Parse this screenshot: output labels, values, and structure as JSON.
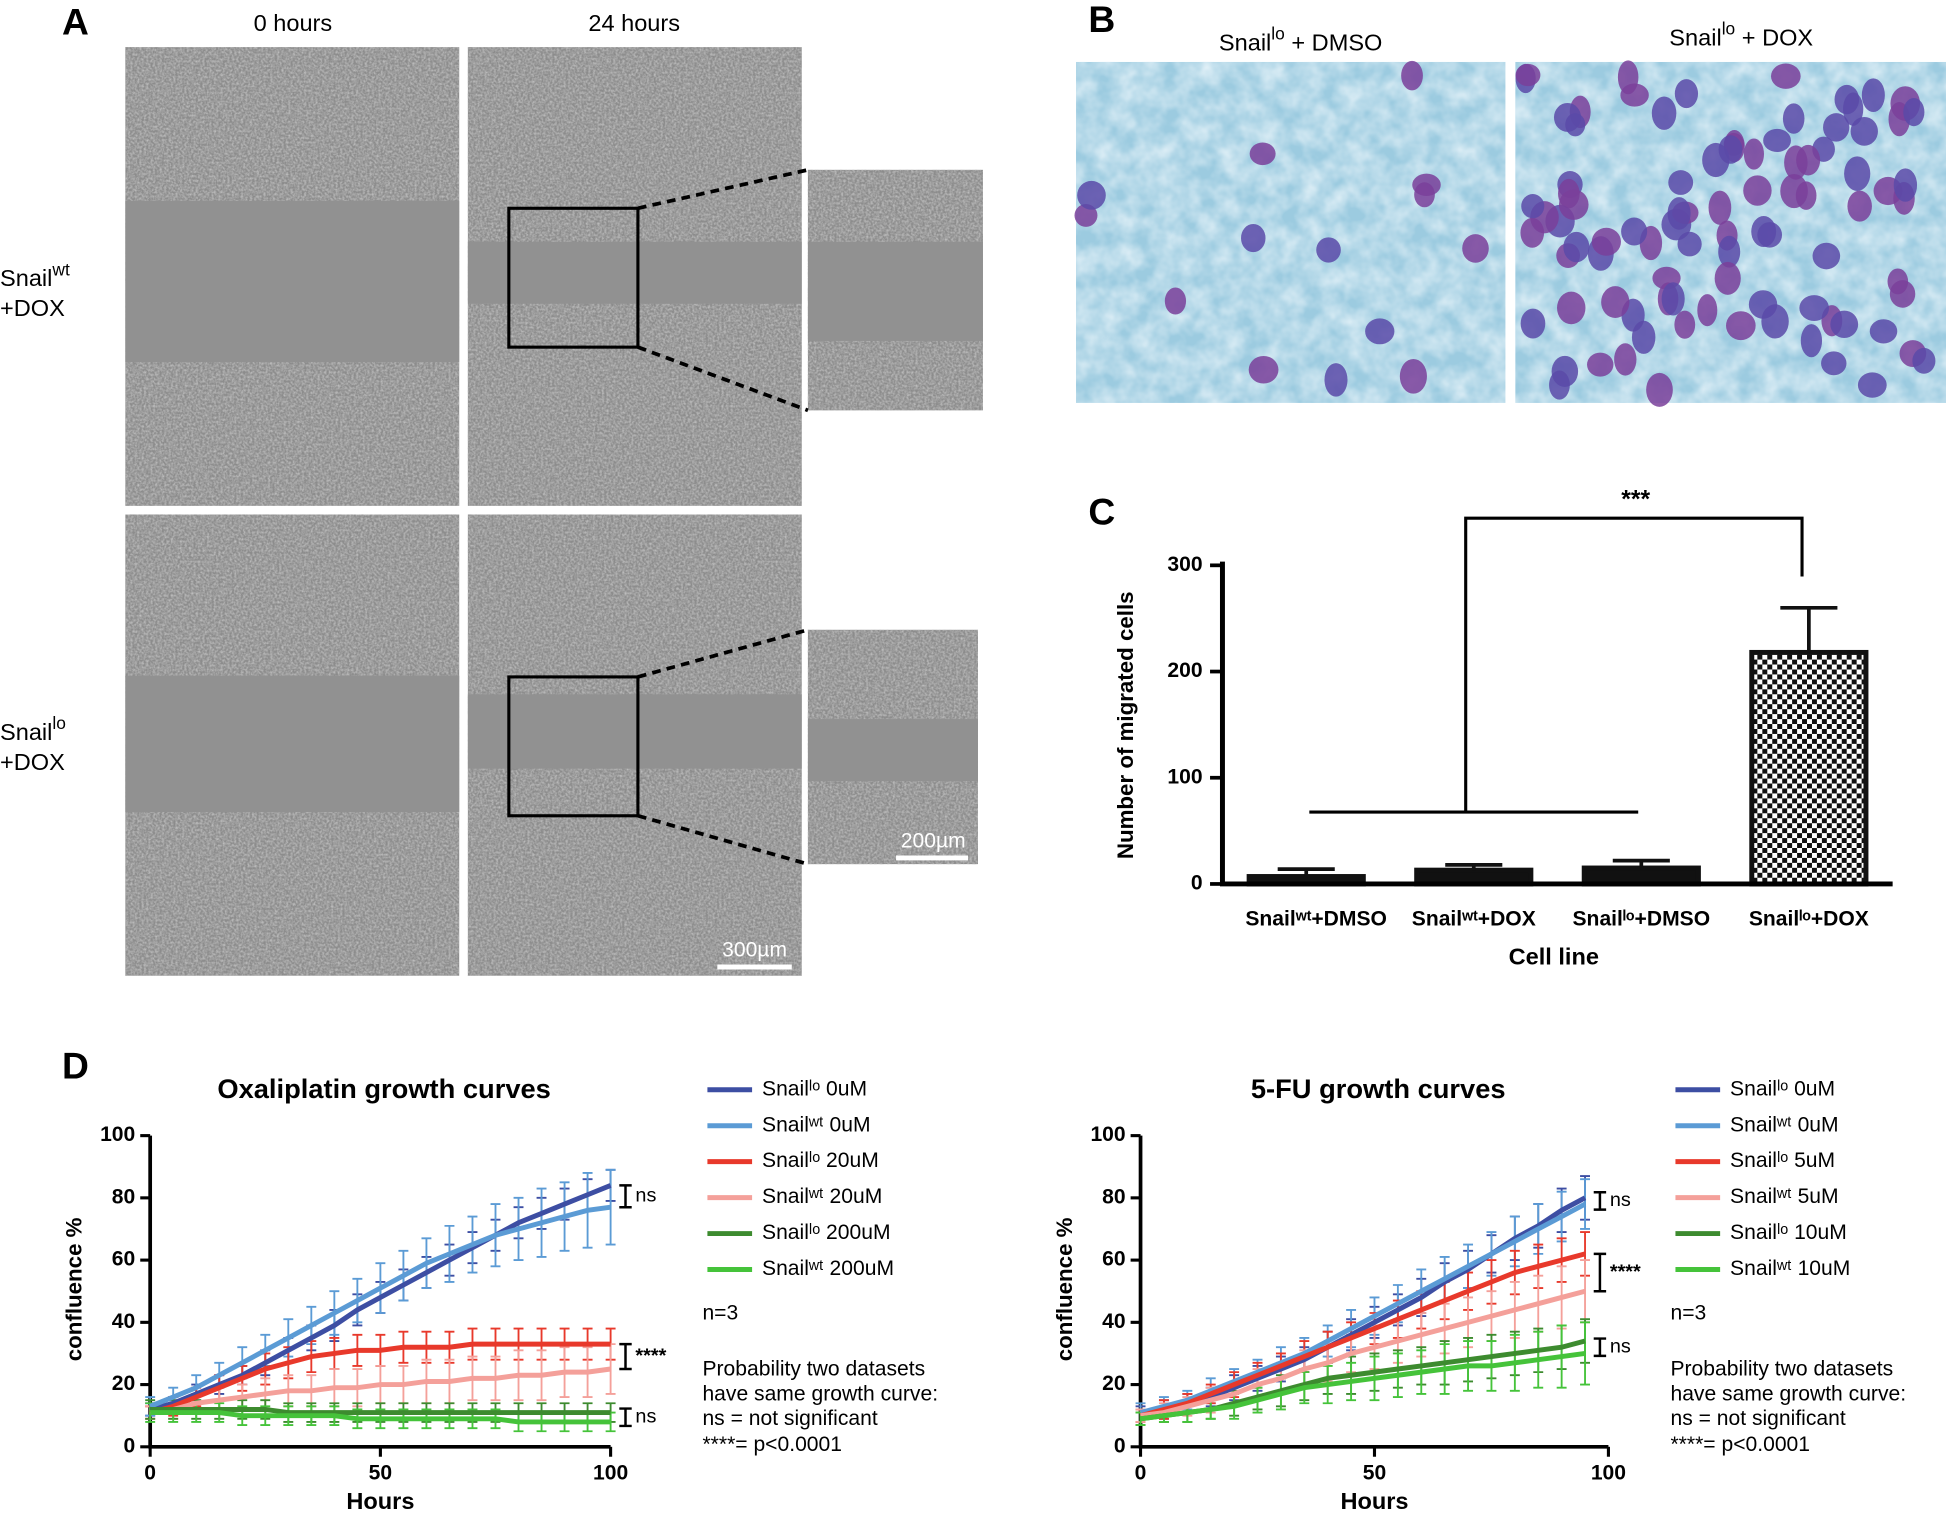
{
  "panel_labels": [
    "A",
    "B",
    "C",
    "D"
  ],
  "panel_a": {
    "column_titles": [
      "0 hours",
      "24 hours"
    ],
    "row_labels": [
      {
        "name": "Snail",
        "sup": "wt",
        "treatment": "+DOX"
      },
      {
        "name": "Snail",
        "sup": "lo",
        "treatment": "+DOX"
      }
    ],
    "scale_bars": [
      "300µm",
      "200µm"
    ]
  },
  "panel_b": {
    "titles": [
      {
        "name": "Snail",
        "sup": "lo",
        "rest": " + DMSO"
      },
      {
        "name": "Snail",
        "sup": "lo",
        "rest": " + DOX"
      }
    ]
  },
  "chart_data": [
    {
      "type": "bar",
      "categories": [
        "Snailʷᵗ+DMSO",
        "Snailʷᵗ+DOX",
        "Snailˡᵒ+DMSO",
        "Snailˡᵒ+DOX"
      ],
      "values": [
        7,
        13,
        15,
        218
      ],
      "errors": [
        7,
        5,
        7,
        42
      ],
      "colors": [
        "#111111",
        "#111111",
        "#111111",
        "#111111"
      ],
      "patterns": [
        "solid",
        "solid",
        "solid",
        "checkerboard"
      ],
      "ylabel": "Number of migrated cells",
      "xlabel": "Cell line",
      "ylim": [
        0,
        300
      ],
      "yticks": [
        0,
        100,
        200,
        300
      ],
      "annotations": [
        "***"
      ]
    },
    {
      "type": "line",
      "title": "Oxaliplatin growth curves",
      "xlabel": "Hours",
      "ylabel": "confluence %",
      "x": [
        0,
        5,
        10,
        15,
        20,
        25,
        30,
        35,
        40,
        45,
        50,
        55,
        60,
        65,
        70,
        75,
        80,
        85,
        90,
        95,
        100
      ],
      "xlim": [
        0,
        100
      ],
      "xticks": [
        0,
        50,
        100
      ],
      "ylim": [
        0,
        100
      ],
      "yticks": [
        0,
        20,
        40,
        60,
        80,
        100
      ],
      "series": [
        {
          "name": "Snailˡᵒ 0uM",
          "color": "#3d4ea3",
          "values": [
            12,
            14,
            17,
            20,
            23,
            27,
            31,
            35,
            39,
            44,
            48,
            52,
            56,
            60,
            64,
            68,
            72,
            75,
            78,
            81,
            84
          ],
          "errors": [
            2,
            2,
            3,
            3,
            3,
            4,
            4,
            4,
            5,
            5,
            5,
            5,
            5,
            5,
            5,
            5,
            5,
            5,
            5,
            5,
            5
          ]
        },
        {
          "name": "Snailʷᵗ 0uM",
          "color": "#5b9bd5",
          "values": [
            13,
            16,
            19,
            23,
            27,
            31,
            35,
            39,
            43,
            47,
            51,
            55,
            59,
            62,
            65,
            68,
            70,
            72,
            74,
            76,
            77
          ],
          "errors": [
            3,
            3,
            4,
            4,
            5,
            5,
            6,
            6,
            7,
            7,
            8,
            8,
            8,
            9,
            9,
            10,
            10,
            11,
            11,
            12,
            12
          ]
        },
        {
          "name": "Snailˡᵒ 20uM",
          "color": "#e8392b",
          "values": [
            11,
            13,
            16,
            19,
            22,
            25,
            27,
            29,
            30,
            31,
            31,
            32,
            32,
            32,
            33,
            33,
            33,
            33,
            33,
            33,
            33
          ],
          "errors": [
            2,
            3,
            3,
            4,
            4,
            5,
            5,
            5,
            5,
            5,
            5,
            5,
            5,
            5,
            5,
            5,
            5,
            5,
            5,
            5,
            5
          ]
        },
        {
          "name": "Snailʷᵗ 20uM",
          "color": "#f4a09a",
          "values": [
            11,
            12,
            14,
            15,
            16,
            17,
            18,
            18,
            19,
            19,
            20,
            20,
            21,
            21,
            22,
            22,
            23,
            23,
            24,
            24,
            25
          ],
          "errors": [
            2,
            3,
            3,
            4,
            4,
            5,
            5,
            5,
            6,
            6,
            6,
            6,
            7,
            7,
            7,
            7,
            8,
            8,
            8,
            8,
            8
          ]
        },
        {
          "name": "Snailˡᵒ 200uM",
          "color": "#3d8b2f",
          "values": [
            12,
            12,
            12,
            12,
            12,
            12,
            11,
            11,
            11,
            11,
            11,
            11,
            11,
            11,
            11,
            11,
            11,
            11,
            11,
            11,
            11
          ],
          "errors": [
            3,
            3,
            3,
            3,
            3,
            3,
            3,
            3,
            3,
            3,
            3,
            3,
            3,
            3,
            3,
            3,
            3,
            3,
            3,
            3,
            3
          ]
        },
        {
          "name": "Snailʷᵗ 200uM",
          "color": "#45c33a",
          "values": [
            11,
            11,
            11,
            11,
            10,
            10,
            10,
            10,
            10,
            9,
            9,
            9,
            9,
            9,
            9,
            9,
            8,
            8,
            8,
            8,
            8
          ],
          "errors": [
            3,
            3,
            3,
            3,
            3,
            3,
            3,
            3,
            3,
            3,
            3,
            3,
            3,
            3,
            3,
            3,
            3,
            3,
            3,
            3,
            3
          ]
        }
      ],
      "annotations": [
        "ns",
        "****",
        "ns"
      ],
      "notes": [
        "n=3",
        "Probability two datasets",
        "have same growth curve:",
        "ns = not significant",
        "****= p<0.0001"
      ]
    },
    {
      "type": "line",
      "title": "5-FU growth curves",
      "xlabel": "Hours",
      "ylabel": "confluence %",
      "x": [
        0,
        5,
        10,
        15,
        20,
        25,
        30,
        35,
        40,
        45,
        50,
        55,
        60,
        65,
        70,
        75,
        80,
        85,
        90,
        95
      ],
      "xlim": [
        0,
        100
      ],
      "xticks": [
        0,
        50,
        100
      ],
      "ylim": [
        0,
        100
      ],
      "yticks": [
        0,
        20,
        40,
        60,
        80,
        100
      ],
      "series": [
        {
          "name": "Snailˡᵒ 0uM",
          "color": "#3d4ea3",
          "values": [
            10,
            12,
            14,
            16,
            19,
            22,
            25,
            28,
            32,
            36,
            40,
            44,
            48,
            53,
            57,
            62,
            67,
            71,
            76,
            80
          ],
          "errors": [
            3,
            3,
            3,
            3,
            4,
            4,
            4,
            4,
            5,
            5,
            5,
            5,
            6,
            6,
            6,
            6,
            7,
            7,
            7,
            7
          ]
        },
        {
          "name": "Snailʷᵗ 0uM",
          "color": "#5b9bd5",
          "values": [
            11,
            13,
            15,
            18,
            21,
            24,
            27,
            30,
            34,
            38,
            42,
            46,
            50,
            54,
            58,
            62,
            66,
            70,
            74,
            78
          ],
          "errors": [
            3,
            3,
            3,
            4,
            4,
            4,
            5,
            5,
            5,
            6,
            6,
            6,
            7,
            7,
            7,
            7,
            8,
            8,
            8,
            8
          ]
        },
        {
          "name": "Snailˡᵒ 5uM",
          "color": "#e8392b",
          "values": [
            10,
            12,
            14,
            17,
            20,
            23,
            26,
            29,
            32,
            35,
            38,
            41,
            44,
            47,
            50,
            53,
            56,
            58,
            60,
            62
          ],
          "errors": [
            2,
            3,
            3,
            3,
            4,
            4,
            4,
            5,
            5,
            5,
            5,
            6,
            6,
            6,
            6,
            7,
            7,
            7,
            7,
            7
          ]
        },
        {
          "name": "Snailʷᵗ 5uM",
          "color": "#f4a09a",
          "values": [
            10,
            11,
            13,
            15,
            17,
            20,
            22,
            25,
            27,
            30,
            32,
            34,
            36,
            38,
            40,
            42,
            44,
            46,
            48,
            50
          ],
          "errors": [
            2,
            3,
            3,
            4,
            4,
            5,
            5,
            6,
            6,
            6,
            7,
            7,
            7,
            8,
            8,
            8,
            9,
            9,
            10,
            10
          ]
        },
        {
          "name": "Snailˡᵒ 10uM",
          "color": "#3d8b2f",
          "values": [
            9,
            10,
            11,
            12,
            14,
            16,
            18,
            20,
            22,
            23,
            24,
            25,
            26,
            27,
            28,
            29,
            30,
            31,
            32,
            34
          ],
          "errors": [
            2,
            2,
            3,
            3,
            4,
            4,
            5,
            5,
            5,
            6,
            6,
            6,
            6,
            7,
            7,
            7,
            7,
            7,
            7,
            7
          ]
        },
        {
          "name": "Snailʷᵗ 10uM",
          "color": "#45c33a",
          "values": [
            9,
            10,
            11,
            12,
            13,
            15,
            17,
            19,
            20,
            21,
            22,
            23,
            24,
            25,
            26,
            26,
            27,
            28,
            29,
            30
          ],
          "errors": [
            2,
            2,
            3,
            3,
            4,
            4,
            5,
            5,
            6,
            6,
            7,
            7,
            7,
            8,
            8,
            8,
            9,
            9,
            10,
            10
          ]
        }
      ],
      "annotations": [
        "ns",
        "****",
        "ns"
      ],
      "notes": [
        "n=3",
        "Probability two datasets",
        "have same growth curve:",
        "ns = not significant",
        "****= p<0.0001"
      ]
    }
  ]
}
